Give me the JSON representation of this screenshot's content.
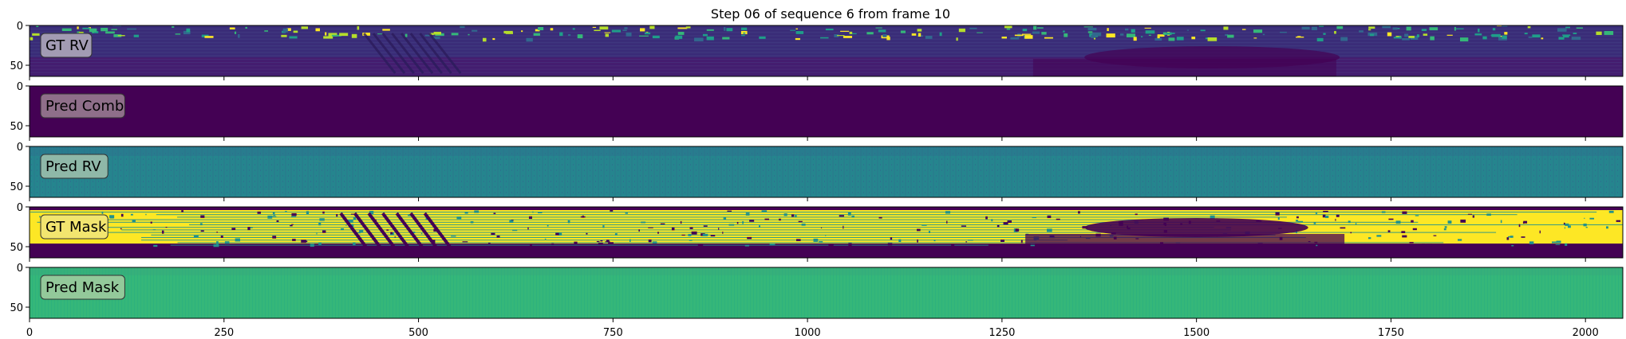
{
  "chart_data": {
    "type": "heatmap",
    "title": "Step 06 of sequence 6 from frame 10",
    "xlabel": "",
    "ylabel": "",
    "xlim": [
      0,
      2048
    ],
    "x_ticks": [
      0,
      250,
      500,
      750,
      1000,
      1250,
      1500,
      1750,
      2000
    ],
    "y_ticks": [
      0,
      50
    ],
    "image_height": 64,
    "colormap": "viridis",
    "panels": [
      {
        "label": "GT RV",
        "style": "gt_rv",
        "base_color": "#3b2f78",
        "label_box": "#a29bb3"
      },
      {
        "label": "Pred Comb",
        "style": "uniform",
        "base_color": "#440154",
        "label_box": "#8f6f8a"
      },
      {
        "label": "Pred RV",
        "style": "pred_rv",
        "base_color": "#25858e",
        "label_box": "#8fb8a8"
      },
      {
        "label": "GT Mask",
        "style": "gt_mask",
        "base_color": "#fde725",
        "label_box": "#f2e56f"
      },
      {
        "label": "Pred Mask",
        "style": "pred_mask",
        "base_color": "#35b779",
        "label_box": "#93c99a"
      }
    ]
  }
}
